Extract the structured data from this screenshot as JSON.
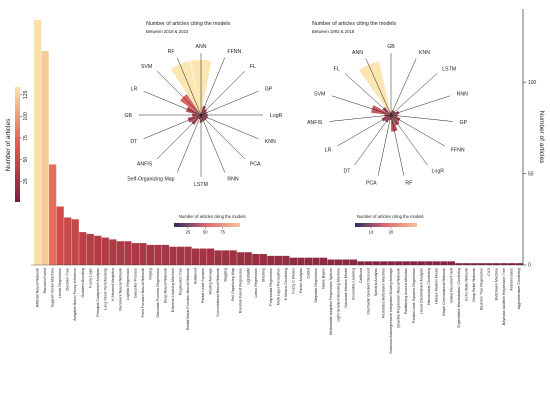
{
  "bar_chart": {
    "type": "bar",
    "categories": [
      "Artificial Neural Network",
      "Random Forest",
      "Support Vector Machine",
      "Linear Regression",
      "Decision Tree",
      "Adaptive Neuro Fuzzy Inference",
      "Gradient Boosting",
      "Fuzzy Logic",
      "Principal Component Analysis",
      "Long Short-Term Memory",
      "K-Nearest Neighbor",
      "Recurrent Neural Network",
      "Logistic Regression",
      "Gaussian Process",
      "Feed Forward Neural Network",
      "Kriging",
      "Gaussian Process Regression",
      "Deep Neural Network",
      "Extreme Learning Machine",
      "Regression Tree",
      "Radial Basis Function Neural Network",
      "AdaBoost",
      "Partial Least Squares",
      "Moving Average",
      "Convolutional Neural Network",
      "Bagging",
      "Self Organizing Map",
      "Random Forest Regression",
      "LightGBM",
      "Lasso Regression",
      "Stacking",
      "Polynomial Regression",
      "Multi Layer Perceptron",
      "K Means Clustering",
      "Fuzzy C Means",
      "Factor Analysis",
      "Cubist",
      "Stepwise Regression",
      "Naive Bayes",
      "Multivariate Adaptive Regression Splines",
      "Light Gradient Boosting Machine",
      "Gaussian Mixture Model",
      "Ensemble Learning",
      "CatBoost",
      "Stochastic Gradient Descent",
      "Spectral Analysis",
      "Restricted Boltzmann Machine",
      "Seasonal Autoregressive Integrated Moving Average",
      "Quantile Regression Neural Network",
      "Partitioning Around Medoids",
      "Partial Least Squares Regression",
      "Linear Discriminant Analysis",
      "Hierarchical Clustering",
      "Hidden Markov Model",
      "Graph Convolutional Network",
      "Gated Recurrent Unit",
      "Expectation Maximization Clustering",
      "Echo State Network",
      "Deep Belief Network",
      "Decision Tree Regression",
      "C4.5",
      "Boltzmann Machine",
      "Bayesian Additive Regression Tree",
      "Autoencoders",
      "Agglomerative Clustering"
    ],
    "values": [
      134,
      117,
      55,
      32,
      26,
      25,
      18,
      17,
      16,
      15,
      14,
      13,
      13,
      12,
      12,
      11,
      11,
      11,
      10,
      10,
      10,
      9,
      9,
      9,
      8,
      8,
      8,
      7,
      7,
      6,
      6,
      5,
      5,
      5,
      4,
      4,
      4,
      4,
      4,
      3,
      3,
      3,
      3,
      2,
      2,
      2,
      2,
      2,
      2,
      2,
      2,
      2,
      2,
      2,
      2,
      2,
      1,
      1,
      1,
      1,
      1,
      1,
      1,
      1,
      1
    ],
    "ylabel": "Number of articles",
    "ylim": [
      0,
      140
    ],
    "yticks": [
      0,
      50,
      100
    ],
    "colorbar": {
      "label": "Number of articles",
      "ticks": [
        25,
        50,
        75,
        100,
        125
      ],
      "range": [
        1,
        134
      ]
    }
  },
  "polar_left": {
    "type": "bar",
    "title": "Number of articles citing the models",
    "subtitle": "Between 2019 & 2023",
    "categories": [
      "ANN",
      "FFNN",
      "FL",
      "GP",
      "LogR",
      "KNN",
      "PCA",
      "RNN",
      "LSTM",
      "Self-Organizing Map",
      "ANFIS",
      "DT",
      "GB",
      "LR",
      "SVM",
      "RF"
    ],
    "values": [
      100,
      17,
      13,
      11,
      12,
      13,
      12,
      12,
      14,
      8,
      22,
      25,
      16,
      28,
      46,
      100
    ],
    "ylim": [
      0,
      100
    ],
    "colorbar": {
      "label": "Number of articles citing the models",
      "ticks": [
        25,
        50,
        75
      ],
      "range": [
        5,
        100
      ]
    }
  },
  "polar_right": {
    "type": "bar",
    "title": "Number of articles citing the models",
    "subtitle": "Between 1993 & 2018",
    "categories": [
      "GB",
      "KNN",
      "LSTM",
      "RNN",
      "GP",
      "FFNN",
      "LogR",
      "RF",
      "PCA",
      "DT",
      "LR",
      "ANFIS",
      "SVM",
      "FL",
      "ANN"
    ],
    "values": [
      2,
      3,
      3,
      5,
      4,
      6,
      7,
      10,
      3,
      5,
      6,
      4,
      12,
      6,
      33
    ],
    "ylim": [
      0,
      33
    ],
    "colorbar": {
      "label": "Number of articles citing the models",
      "ticks": [
        10,
        20
      ],
      "range": [
        2,
        33
      ]
    }
  },
  "colors": {
    "low": "#7b1e3e",
    "mid": "#e3584d",
    "high": "#fbe1a6",
    "cbar_low": "#2c2d5e",
    "cbar_mid": "#e06a72",
    "cbar_high": "#f7c39a",
    "axis": "#333333"
  }
}
